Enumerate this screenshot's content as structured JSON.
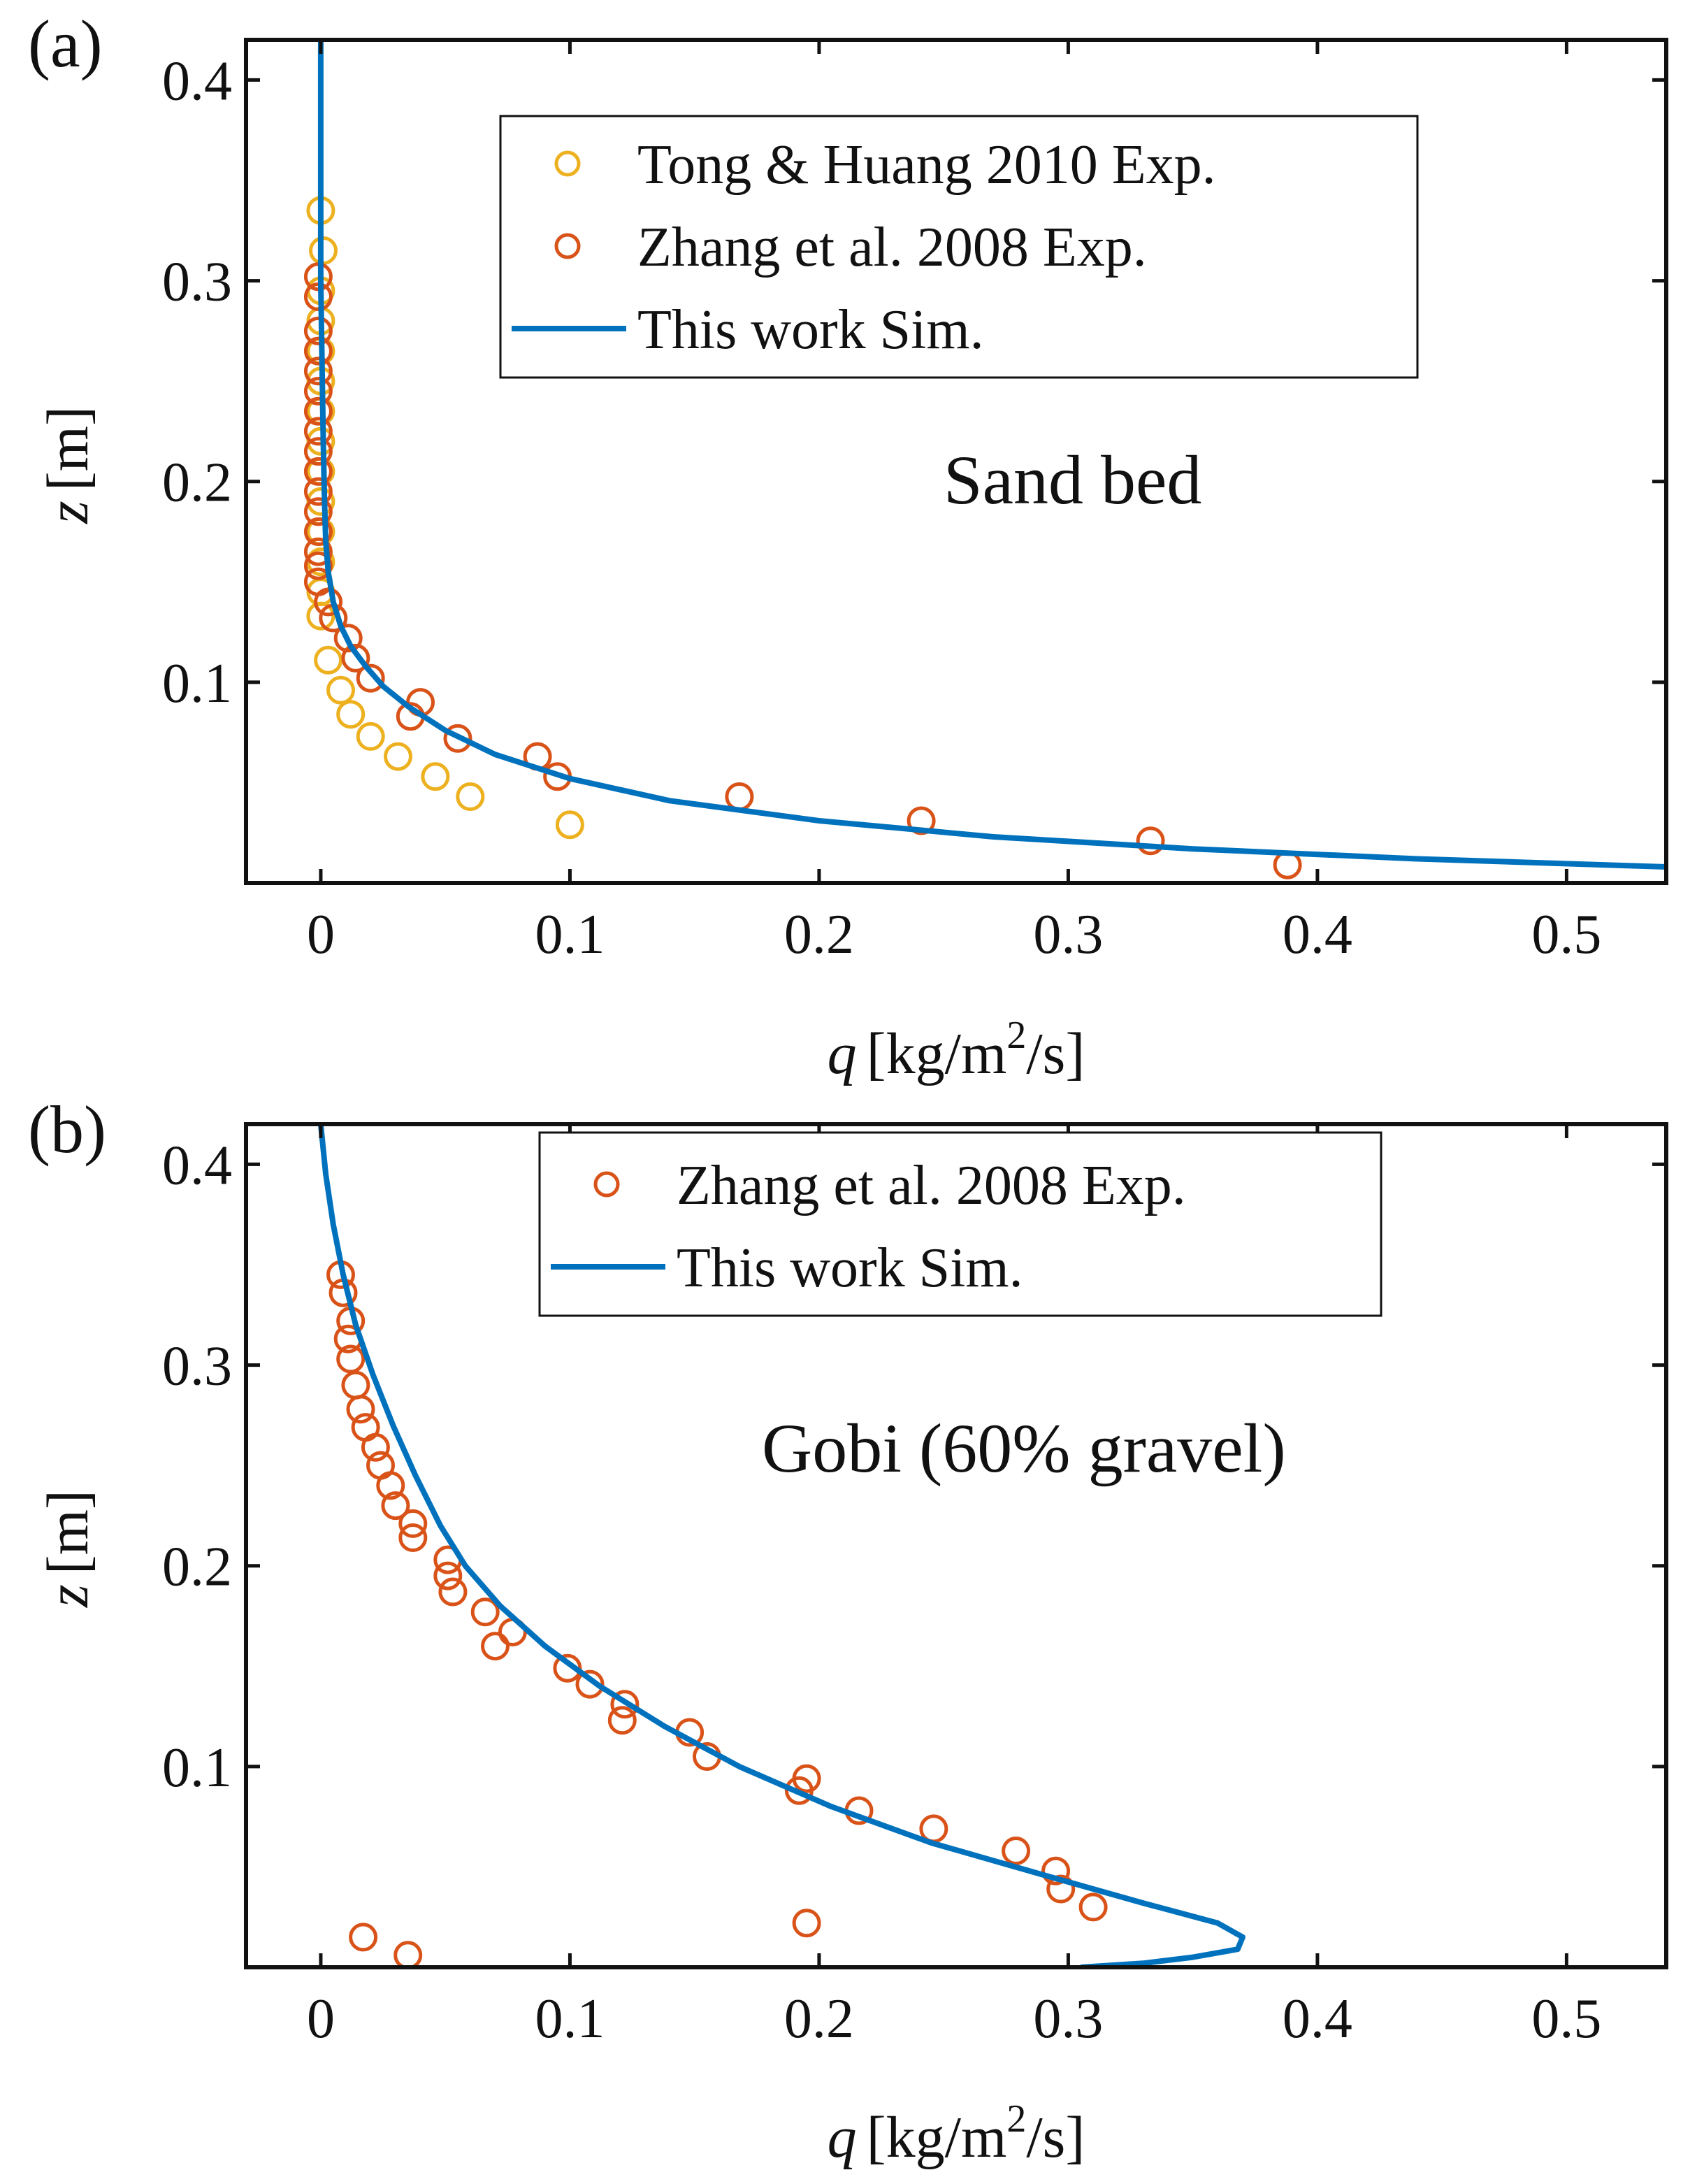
{
  "chart_data": [
    {
      "type": "scatter",
      "panel_label": "(a)",
      "annotation": "Sand bed",
      "xlabel_var": "q",
      "xlabel_unit": "[kg/m",
      "xlabel_sup": "2",
      "xlabel_tail": "/s]",
      "ylabel_var": "z",
      "ylabel_unit": "[m]",
      "xlim": [
        -0.03,
        0.54
      ],
      "ylim": [
        0,
        0.42
      ],
      "xticks": [
        0,
        0.1,
        0.2,
        0.3,
        0.4,
        0.5
      ],
      "xtick_labels": [
        "0",
        "0.1",
        "0.2",
        "0.3",
        "0.4",
        "0.5"
      ],
      "yticks": [
        0.1,
        0.2,
        0.3,
        0.4
      ],
      "ytick_labels": [
        "0.1",
        "0.2",
        "0.3",
        "0.4"
      ],
      "legend_position": "top-center",
      "series": [
        {
          "name": "Tong & Huang 2010 Exp.",
          "kind": "markers",
          "color": "#EDB120",
          "points": [
            [
              0.0,
              0.335
            ],
            [
              0.001,
              0.315
            ],
            [
              0.0,
              0.295
            ],
            [
              0.0,
              0.28
            ],
            [
              0.0,
              0.265
            ],
            [
              0.0,
              0.25
            ],
            [
              0.0,
              0.235
            ],
            [
              0.0,
              0.22
            ],
            [
              0.0,
              0.205
            ],
            [
              0.0,
              0.19
            ],
            [
              0.0,
              0.175
            ],
            [
              0.0,
              0.16
            ],
            [
              0.0,
              0.145
            ],
            [
              0.0,
              0.133
            ],
            [
              0.003,
              0.111
            ],
            [
              0.008,
              0.096
            ],
            [
              0.012,
              0.084
            ],
            [
              0.02,
              0.073
            ],
            [
              0.031,
              0.063
            ],
            [
              0.046,
              0.053
            ],
            [
              0.06,
              0.043
            ],
            [
              0.1,
              0.029
            ]
          ]
        },
        {
          "name": "Zhang et al. 2008 Exp.",
          "kind": "markers",
          "color": "#D95319",
          "points": [
            [
              -0.001,
              0.302
            ],
            [
              -0.001,
              0.292
            ],
            [
              -0.001,
              0.275
            ],
            [
              -0.001,
              0.265
            ],
            [
              -0.001,
              0.255
            ],
            [
              -0.001,
              0.245
            ],
            [
              -0.001,
              0.235
            ],
            [
              -0.001,
              0.225
            ],
            [
              -0.001,
              0.215
            ],
            [
              -0.001,
              0.205
            ],
            [
              -0.001,
              0.195
            ],
            [
              -0.001,
              0.185
            ],
            [
              -0.001,
              0.175
            ],
            [
              -0.001,
              0.165
            ],
            [
              -0.001,
              0.158
            ],
            [
              -0.001,
              0.15
            ],
            [
              0.003,
              0.14
            ],
            [
              0.005,
              0.132
            ],
            [
              0.011,
              0.122
            ],
            [
              0.014,
              0.112
            ],
            [
              0.02,
              0.102
            ],
            [
              0.04,
              0.09
            ],
            [
              0.036,
              0.083
            ],
            [
              0.055,
              0.072
            ],
            [
              0.087,
              0.063
            ],
            [
              0.095,
              0.053
            ],
            [
              0.168,
              0.043
            ],
            [
              0.241,
              0.031
            ],
            [
              0.333,
              0.021
            ],
            [
              0.388,
              0.009
            ]
          ]
        },
        {
          "name": "This work Sim.",
          "kind": "line",
          "color": "#0072BD",
          "points": [
            [
              0.0,
              0.42
            ],
            [
              0.0,
              0.38
            ],
            [
              0.0,
              0.34
            ],
            [
              0.0,
              0.3
            ],
            [
              0.0005,
              0.26
            ],
            [
              0.001,
              0.22
            ],
            [
              0.0015,
              0.19
            ],
            [
              0.002,
              0.17
            ],
            [
              0.003,
              0.155
            ],
            [
              0.005,
              0.14
            ],
            [
              0.008,
              0.128
            ],
            [
              0.012,
              0.118
            ],
            [
              0.018,
              0.108
            ],
            [
              0.025,
              0.098
            ],
            [
              0.035,
              0.088
            ],
            [
              0.05,
              0.076
            ],
            [
              0.07,
              0.064
            ],
            [
              0.1,
              0.052
            ],
            [
              0.14,
              0.041
            ],
            [
              0.2,
              0.031
            ],
            [
              0.27,
              0.023
            ],
            [
              0.35,
              0.017
            ],
            [
              0.44,
              0.012
            ],
            [
              0.54,
              0.008
            ]
          ]
        }
      ]
    },
    {
      "type": "scatter",
      "panel_label": "(b)",
      "annotation": "Gobi (60% gravel)",
      "xlabel_var": "q",
      "xlabel_unit": "[kg/m",
      "xlabel_sup": "2",
      "xlabel_tail": "/s]",
      "ylabel_var": "z",
      "ylabel_unit": "[m]",
      "xlim": [
        -0.03,
        0.54
      ],
      "ylim": [
        0,
        0.42
      ],
      "xticks": [
        0,
        0.1,
        0.2,
        0.3,
        0.4,
        0.5
      ],
      "xtick_labels": [
        "0",
        "0.1",
        "0.2",
        "0.3",
        "0.4",
        "0.5"
      ],
      "yticks": [
        0.1,
        0.2,
        0.3,
        0.4
      ],
      "ytick_labels": [
        "0.1",
        "0.2",
        "0.3",
        "0.4"
      ],
      "legend_position": "top-center",
      "series": [
        {
          "name": "Zhang et al. 2008 Exp.",
          "kind": "markers",
          "color": "#D95319",
          "points": [
            [
              0.008,
              0.345
            ],
            [
              0.009,
              0.336
            ],
            [
              0.012,
              0.322
            ],
            [
              0.011,
              0.313
            ],
            [
              0.012,
              0.303
            ],
            [
              0.014,
              0.29
            ],
            [
              0.016,
              0.278
            ],
            [
              0.018,
              0.269
            ],
            [
              0.022,
              0.259
            ],
            [
              0.024,
              0.25
            ],
            [
              0.028,
              0.24
            ],
            [
              0.03,
              0.23
            ],
            [
              0.037,
              0.221
            ],
            [
              0.037,
              0.214
            ],
            [
              0.051,
              0.203
            ],
            [
              0.051,
              0.195
            ],
            [
              0.053,
              0.187
            ],
            [
              0.066,
              0.177
            ],
            [
              0.077,
              0.167
            ],
            [
              0.07,
              0.16
            ],
            [
              0.099,
              0.149
            ],
            [
              0.108,
              0.141
            ],
            [
              0.122,
              0.131
            ],
            [
              0.121,
              0.123
            ],
            [
              0.148,
              0.117
            ],
            [
              0.155,
              0.105
            ],
            [
              0.195,
              0.094
            ],
            [
              0.192,
              0.088
            ],
            [
              0.216,
              0.078
            ],
            [
              0.246,
              0.069
            ],
            [
              0.279,
              0.058
            ],
            [
              0.295,
              0.048
            ],
            [
              0.297,
              0.039
            ],
            [
              0.31,
              0.03
            ],
            [
              0.195,
              0.022
            ],
            [
              0.017,
              0.015
            ],
            [
              0.035,
              0.006
            ]
          ]
        },
        {
          "name": "This work Sim.",
          "kind": "line",
          "color": "#0072BD",
          "points": [
            [
              0.0,
              0.42
            ],
            [
              0.002,
              0.395
            ],
            [
              0.005,
              0.37
            ],
            [
              0.009,
              0.345
            ],
            [
              0.014,
              0.32
            ],
            [
              0.021,
              0.295
            ],
            [
              0.029,
              0.27
            ],
            [
              0.038,
              0.245
            ],
            [
              0.048,
              0.22
            ],
            [
              0.058,
              0.2
            ],
            [
              0.072,
              0.18
            ],
            [
              0.09,
              0.16
            ],
            [
              0.112,
              0.14
            ],
            [
              0.138,
              0.12
            ],
            [
              0.168,
              0.1
            ],
            [
              0.205,
              0.08
            ],
            [
              0.245,
              0.062
            ],
            [
              0.29,
              0.046
            ],
            [
              0.33,
              0.032
            ],
            [
              0.36,
              0.022
            ],
            [
              0.37,
              0.015
            ],
            [
              0.368,
              0.009
            ],
            [
              0.35,
              0.005
            ],
            [
              0.33,
              0.002
            ],
            [
              0.305,
              0.0
            ]
          ]
        }
      ]
    }
  ]
}
